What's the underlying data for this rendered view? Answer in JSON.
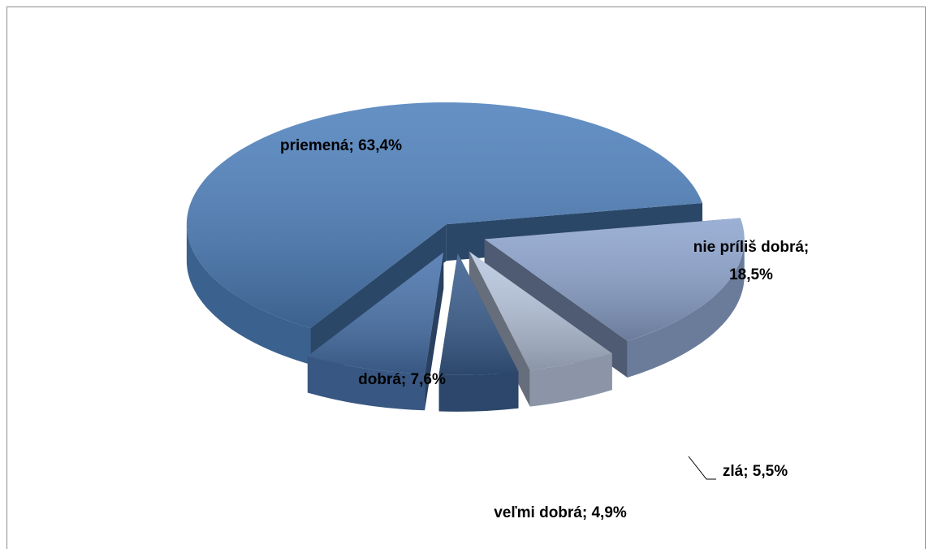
{
  "chart_data": {
    "type": "pie3d",
    "categories": [
      "nie príliš dobrá",
      "zlá",
      "veľmi dobrá",
      "dobrá",
      "priemená"
    ],
    "values": [
      18.5,
      5.5,
      4.9,
      7.6,
      63.4
    ],
    "value_labels": [
      "nie príliš dobrá; 18,5%",
      "zlá; 5,5%",
      "veľmi dobrá; 4,9%",
      "dobrá; 7,6%",
      "priemená; 63,4%"
    ],
    "colors": [
      "#8ea5cf",
      "#b9c7df",
      "#3b5f8f",
      "#4a74ad",
      "#4f81bd"
    ]
  }
}
